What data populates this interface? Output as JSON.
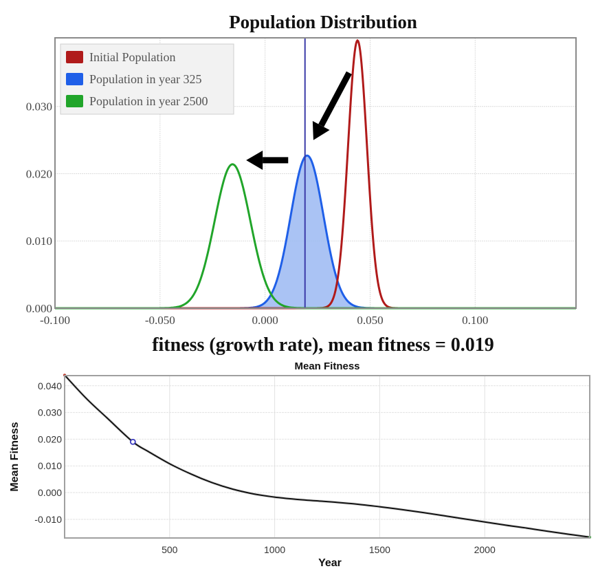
{
  "chart_data": [
    {
      "type": "area",
      "title": "Population Distribution",
      "xlabel": "fitness (growth rate), mean fitness = 0.019",
      "ylabel": "",
      "xlim": [
        -0.1,
        0.148
      ],
      "ylim": [
        0,
        0.0402
      ],
      "x_ticks": [
        -0.1,
        -0.05,
        0.0,
        0.05,
        0.1
      ],
      "x_tick_labels": [
        "-0.100",
        "-0.050",
        "0.000",
        "0.050",
        "0.100"
      ],
      "y_ticks": [
        0.0,
        0.01,
        0.02,
        0.03
      ],
      "y_tick_labels": [
        "0.000",
        "0.010",
        "0.020",
        "0.030"
      ],
      "grid": true,
      "legend_position": "top-left",
      "mean_line": {
        "x": 0.019,
        "color": "#3a3aa8"
      },
      "series": [
        {
          "name": "Initial Population",
          "color": "#b01a1a",
          "filled": false,
          "peak_x": 0.044,
          "peak_y": 0.0398,
          "sigma": 0.0045
        },
        {
          "name": "Population in year 325",
          "color": "#1f5fe8",
          "fill_color": "#9bb8f2",
          "filled": true,
          "peak_x": 0.02,
          "peak_y": 0.0227,
          "sigma": 0.0078
        },
        {
          "name": "Population in year 2500",
          "color": "#21a52a",
          "filled": false,
          "peak_x": -0.0155,
          "peak_y": 0.0214,
          "sigma": 0.0085
        }
      ],
      "annotations": [
        {
          "type": "arrow",
          "from": [
            0.04,
            0.035
          ],
          "to": [
            0.023,
            0.025
          ],
          "color": "#000000"
        },
        {
          "type": "arrow",
          "from": [
            0.011,
            0.022
          ],
          "to": [
            -0.009,
            0.022
          ],
          "color": "#000000"
        }
      ]
    },
    {
      "type": "line",
      "title": "Mean Fitness",
      "xlabel": "Year",
      "ylabel": "Mean Fitness",
      "xlim": [
        0,
        2500
      ],
      "ylim": [
        -0.017,
        0.0438
      ],
      "x_ticks": [
        500,
        1000,
        1500,
        2000
      ],
      "x_tick_labels": [
        "500",
        "1000",
        "1500",
        "2000"
      ],
      "y_ticks": [
        0.04,
        0.03,
        0.02,
        0.01,
        0.0,
        -0.01
      ],
      "y_tick_labels": [
        "0.040",
        "0.030",
        "0.020",
        "0.010",
        "0.000",
        "-0.010"
      ],
      "grid": true,
      "series": [
        {
          "name": "Mean Fitness",
          "color": "#111111",
          "x": [
            0,
            100,
            200,
            325,
            400,
            500,
            600,
            700,
            800,
            900,
            1000,
            1100,
            1200,
            1300,
            1400,
            1500,
            1600,
            1700,
            1800,
            1900,
            2000,
            2100,
            2200,
            2300,
            2400,
            2500
          ],
          "y": [
            0.044,
            0.0355,
            0.0281,
            0.019,
            0.0153,
            0.0108,
            0.007,
            0.0038,
            0.0013,
            -0.0005,
            -0.0017,
            -0.0025,
            -0.0031,
            -0.0037,
            -0.0044,
            -0.0053,
            -0.0063,
            -0.0074,
            -0.0086,
            -0.0098,
            -0.011,
            -0.0122,
            -0.0133,
            -0.0145,
            -0.0156,
            -0.0167
          ]
        }
      ],
      "markers": [
        {
          "name": "start",
          "x": 0,
          "y": 0.044,
          "color": "#c0392b"
        },
        {
          "name": "year 325",
          "x": 325,
          "y": 0.019,
          "color": "#3a3ac0"
        },
        {
          "name": "end",
          "x": 2500,
          "y": -0.0167,
          "color": "#2aa52a"
        }
      ]
    }
  ]
}
